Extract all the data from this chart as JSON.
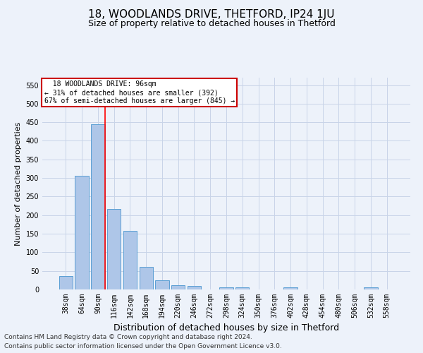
{
  "title": "18, WOODLANDS DRIVE, THETFORD, IP24 1JU",
  "subtitle": "Size of property relative to detached houses in Thetford",
  "xlabel": "Distribution of detached houses by size in Thetford",
  "ylabel": "Number of detached properties",
  "footnote1": "Contains HM Land Registry data © Crown copyright and database right 2024.",
  "footnote2": "Contains public sector information licensed under the Open Government Licence v3.0.",
  "property_label": "18 WOODLANDS DRIVE: 96sqm",
  "pct_smaller": 31,
  "count_smaller": 392,
  "pct_semi_larger": 67,
  "count_semi_larger": 845,
  "bin_labels": [
    "38sqm",
    "64sqm",
    "90sqm",
    "116sqm",
    "142sqm",
    "168sqm",
    "194sqm",
    "220sqm",
    "246sqm",
    "272sqm",
    "298sqm",
    "324sqm",
    "350sqm",
    "376sqm",
    "402sqm",
    "428sqm",
    "454sqm",
    "480sqm",
    "506sqm",
    "532sqm",
    "558sqm"
  ],
  "bar_values": [
    37,
    305,
    445,
    217,
    157,
    60,
    25,
    11,
    9,
    0,
    5,
    6,
    0,
    0,
    5,
    0,
    0,
    0,
    0,
    5,
    0
  ],
  "bar_color": "#aec6e8",
  "bar_edge_color": "#5a9fd4",
  "red_line_x": 2.425,
  "ylim": [
    0,
    570
  ],
  "yticks": [
    0,
    50,
    100,
    150,
    200,
    250,
    300,
    350,
    400,
    450,
    500,
    550
  ],
  "background_color": "#edf2fa",
  "grid_color": "#c8d4e8",
  "annotation_box_color": "#ffffff",
  "annotation_box_edge": "#cc0000",
  "title_fontsize": 11,
  "subtitle_fontsize": 9,
  "xlabel_fontsize": 9,
  "ylabel_fontsize": 8,
  "tick_fontsize": 7,
  "footnote_fontsize": 6.5
}
